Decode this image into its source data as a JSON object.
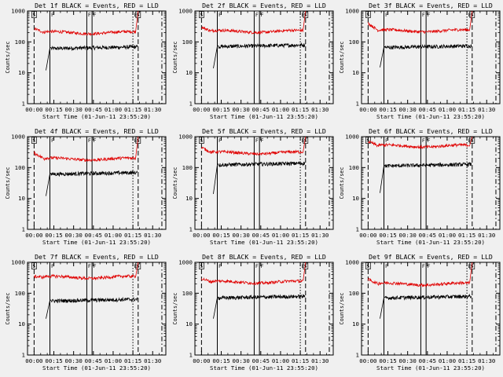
{
  "figure": {
    "background": "#f0f0f0",
    "events_color": "#000000",
    "lld_color": "#e00000"
  },
  "chart_data": [
    {
      "type": "line",
      "title": "Det 1f BLACK = Events, RED = LLD",
      "xlabel": "Start Time (01-Jun-11 23:55:20)",
      "ylabel": "Counts/sec",
      "x_ticks": [
        "00:00",
        "00:15",
        "00:30",
        "00:45",
        "01:00",
        "01:15",
        "01:30"
      ],
      "y_ticks": [
        "1",
        "10",
        "100",
        "1000"
      ],
      "xlim_minutes": [
        -5,
        100
      ],
      "ylim": [
        1,
        1000
      ],
      "yscale": "log",
      "markers": [
        {
          "label": "S",
          "minutes": 0.0,
          "style": "dashed"
        },
        {
          "label": "F",
          "minutes": 12.0,
          "style": "solid"
        },
        {
          "label": "F",
          "minutes": 40.0,
          "style": "solid"
        },
        {
          "label": "F",
          "minutes": 44.0,
          "style": "solid"
        },
        {
          "label": "E",
          "minutes": 75.0,
          "style": "dotted"
        },
        {
          "label": "S",
          "minutes": 79.0,
          "style": "dashed"
        },
        {
          "label": "",
          "minutes": 97.0,
          "style": "dashdot"
        }
      ],
      "series": [
        {
          "name": "Events",
          "color": "#000000",
          "start_minutes": 9,
          "end_minutes": 78.5,
          "start_value": 12,
          "level": 65,
          "end_value": 75
        },
        {
          "name": "LLD",
          "color": "#e00000",
          "start_minutes": 0,
          "end_minutes": 79,
          "start_value": 270,
          "level": 200,
          "end_value": 1000
        }
      ]
    },
    {
      "type": "line",
      "title": "Det 2f BLACK = Events, RED = LLD",
      "xlabel": "Start Time (01-Jun-11 23:55:20)",
      "ylabel": "Counts/sec",
      "x_ticks": [
        "00:00",
        "00:15",
        "00:30",
        "00:45",
        "01:00",
        "01:15",
        "01:30"
      ],
      "y_ticks": [
        "1",
        "10",
        "100",
        "1000"
      ],
      "xlim_minutes": [
        -5,
        100
      ],
      "ylim": [
        1,
        1000
      ],
      "yscale": "log",
      "markers": [
        {
          "label": "S",
          "minutes": 0.0,
          "style": "dashed"
        },
        {
          "label": "F",
          "minutes": 12.0,
          "style": "solid"
        },
        {
          "label": "F",
          "minutes": 40.0,
          "style": "solid"
        },
        {
          "label": "F",
          "minutes": 44.0,
          "style": "solid"
        },
        {
          "label": "E",
          "minutes": 75.0,
          "style": "dotted"
        },
        {
          "label": "S",
          "minutes": 79.0,
          "style": "dashed"
        },
        {
          "label": "",
          "minutes": 97.0,
          "style": "dashdot"
        }
      ],
      "series": [
        {
          "name": "Events",
          "color": "#000000",
          "start_minutes": 9,
          "end_minutes": 78.5,
          "start_value": 14,
          "level": 75,
          "end_value": 85
        },
        {
          "name": "LLD",
          "color": "#e00000",
          "start_minutes": 0,
          "end_minutes": 79,
          "start_value": 300,
          "level": 220,
          "end_value": 1000
        }
      ]
    },
    {
      "type": "line",
      "title": "Det 3f BLACK = Events, RED = LLD",
      "xlabel": "Start Time (01-Jun-11 23:55:20)",
      "ylabel": "Counts/sec",
      "x_ticks": [
        "00:00",
        "00:15",
        "00:30",
        "00:45",
        "01:00",
        "01:15",
        "01:30"
      ],
      "y_ticks": [
        "1",
        "10",
        "100",
        "1000"
      ],
      "xlim_minutes": [
        -5,
        100
      ],
      "ylim": [
        1,
        1000
      ],
      "yscale": "log",
      "markers": [
        {
          "label": "S",
          "minutes": 0.0,
          "style": "dashed"
        },
        {
          "label": "F",
          "minutes": 12.0,
          "style": "solid"
        },
        {
          "label": "F",
          "minutes": 40.0,
          "style": "solid"
        },
        {
          "label": "F",
          "minutes": 44.0,
          "style": "solid"
        },
        {
          "label": "E",
          "minutes": 75.0,
          "style": "dotted"
        },
        {
          "label": "S",
          "minutes": 79.0,
          "style": "dashed"
        },
        {
          "label": "",
          "minutes": 97.0,
          "style": "dashdot"
        }
      ],
      "series": [
        {
          "name": "Events",
          "color": "#000000",
          "start_minutes": 9,
          "end_minutes": 78.5,
          "start_value": 15,
          "level": 70,
          "end_value": 80
        },
        {
          "name": "LLD",
          "color": "#e00000",
          "start_minutes": 0,
          "end_minutes": 79,
          "start_value": 400,
          "level": 230,
          "end_value": 1000
        }
      ]
    },
    {
      "type": "line",
      "title": "Det 4f BLACK = Events, RED = LLD",
      "xlabel": "Start Time (01-Jun-11 23:55:20)",
      "ylabel": "Counts/sec",
      "x_ticks": [
        "00:00",
        "00:15",
        "00:30",
        "00:45",
        "01:00",
        "01:15",
        "01:30"
      ],
      "y_ticks": [
        "1",
        "10",
        "100",
        "1000"
      ],
      "xlim_minutes": [
        -5,
        100
      ],
      "ylim": [
        1,
        1000
      ],
      "yscale": "log",
      "markers": [
        {
          "label": "S",
          "minutes": 0.0,
          "style": "dashed"
        },
        {
          "label": "F",
          "minutes": 12.0,
          "style": "solid"
        },
        {
          "label": "F",
          "minutes": 40.0,
          "style": "solid"
        },
        {
          "label": "F",
          "minutes": 44.0,
          "style": "solid"
        },
        {
          "label": "E",
          "minutes": 75.0,
          "style": "dotted"
        },
        {
          "label": "S",
          "minutes": 79.0,
          "style": "dashed"
        },
        {
          "label": "",
          "minutes": 97.0,
          "style": "dashdot"
        }
      ],
      "series": [
        {
          "name": "Events",
          "color": "#000000",
          "start_minutes": 9,
          "end_minutes": 78.5,
          "start_value": 12,
          "level": 65,
          "end_value": 75
        },
        {
          "name": "LLD",
          "color": "#e00000",
          "start_minutes": 0,
          "end_minutes": 79,
          "start_value": 300,
          "level": 190,
          "end_value": 1000
        }
      ]
    },
    {
      "type": "line",
      "title": "Det 5f BLACK = Events, RED = LLD",
      "xlabel": "Start Time (01-Jun-11 23:55:20)",
      "ylabel": "Counts/sec",
      "x_ticks": [
        "00:00",
        "00:15",
        "00:30",
        "00:45",
        "01:00",
        "01:15",
        "01:30"
      ],
      "y_ticks": [
        "1",
        "10",
        "100",
        "1000"
      ],
      "xlim_minutes": [
        -5,
        100
      ],
      "ylim": [
        1,
        1000
      ],
      "yscale": "log",
      "markers": [
        {
          "label": "S",
          "minutes": 0.0,
          "style": "dashed"
        },
        {
          "label": "F",
          "minutes": 12.0,
          "style": "solid"
        },
        {
          "label": "F",
          "minutes": 40.0,
          "style": "solid"
        },
        {
          "label": "F",
          "minutes": 44.0,
          "style": "solid"
        },
        {
          "label": "E",
          "minutes": 75.0,
          "style": "dotted"
        },
        {
          "label": "S",
          "minutes": 79.0,
          "style": "dashed"
        },
        {
          "label": "",
          "minutes": 97.0,
          "style": "dashdot"
        }
      ],
      "series": [
        {
          "name": "Events",
          "color": "#000000",
          "start_minutes": 9,
          "end_minutes": 78.5,
          "start_value": 14,
          "level": 130,
          "end_value": 120
        },
        {
          "name": "LLD",
          "color": "#e00000",
          "start_minutes": 0,
          "end_minutes": 79,
          "start_value": 450,
          "level": 300,
          "end_value": 1000
        }
      ]
    },
    {
      "type": "line",
      "title": "Det 6f BLACK = Events, RED = LLD",
      "xlabel": "Start Time (01-Jun-11 23:55:20)",
      "ylabel": "Counts/sec",
      "x_ticks": [
        "00:00",
        "00:15",
        "00:30",
        "00:45",
        "01:00",
        "01:15",
        "01:30"
      ],
      "y_ticks": [
        "1",
        "10",
        "100",
        "1000"
      ],
      "xlim_minutes": [
        -5,
        100
      ],
      "ylim": [
        1,
        1000
      ],
      "yscale": "log",
      "markers": [
        {
          "label": "S",
          "minutes": 0.0,
          "style": "dashed"
        },
        {
          "label": "F",
          "minutes": 12.0,
          "style": "solid"
        },
        {
          "label": "F",
          "minutes": 40.0,
          "style": "solid"
        },
        {
          "label": "F",
          "minutes": 44.0,
          "style": "solid"
        },
        {
          "label": "E",
          "minutes": 75.0,
          "style": "dotted"
        },
        {
          "label": "S",
          "minutes": 79.0,
          "style": "dashed"
        },
        {
          "label": "",
          "minutes": 97.0,
          "style": "dashdot"
        }
      ],
      "series": [
        {
          "name": "Events",
          "color": "#000000",
          "start_minutes": 9,
          "end_minutes": 78.5,
          "start_value": 15,
          "level": 120,
          "end_value": 100
        },
        {
          "name": "LLD",
          "color": "#e00000",
          "start_minutes": 0,
          "end_minutes": 79,
          "start_value": 700,
          "level": 500,
          "end_value": 1000
        }
      ]
    },
    {
      "type": "line",
      "title": "Det 7f BLACK = Events, RED = LLD",
      "xlabel": "Start Time (01-Jun-11 23:55:20)",
      "ylabel": "Counts/sec",
      "x_ticks": [
        "00:00",
        "00:15",
        "00:30",
        "00:45",
        "01:00",
        "01:15",
        "01:30"
      ],
      "y_ticks": [
        "1",
        "10",
        "100",
        "1000"
      ],
      "xlim_minutes": [
        -5,
        100
      ],
      "ylim": [
        1,
        1000
      ],
      "yscale": "log",
      "markers": [
        {
          "label": "S",
          "minutes": 0.0,
          "style": "dashed"
        },
        {
          "label": "F",
          "minutes": 12.0,
          "style": "solid"
        },
        {
          "label": "F",
          "minutes": 40.0,
          "style": "solid"
        },
        {
          "label": "F",
          "minutes": 44.0,
          "style": "solid"
        },
        {
          "label": "E",
          "minutes": 75.0,
          "style": "dotted"
        },
        {
          "label": "S",
          "minutes": 79.0,
          "style": "dashed"
        },
        {
          "label": "",
          "minutes": 97.0,
          "style": "dashdot"
        }
      ],
      "series": [
        {
          "name": "Events",
          "color": "#000000",
          "start_minutes": 9,
          "end_minutes": 78.5,
          "start_value": 15,
          "level": 60,
          "end_value": 60
        },
        {
          "name": "LLD",
          "color": "#e00000",
          "start_minutes": 0,
          "end_minutes": 79,
          "start_value": 350,
          "level": 330,
          "end_value": 1000
        }
      ]
    },
    {
      "type": "line",
      "title": "Det 8f BLACK = Events, RED = LLD",
      "xlabel": "Start Time (01-Jun-11 23:55:20)",
      "ylabel": "Counts/sec",
      "x_ticks": [
        "00:00",
        "00:15",
        "00:30",
        "00:45",
        "01:00",
        "01:15",
        "01:30"
      ],
      "y_ticks": [
        "1",
        "10",
        "100",
        "1000"
      ],
      "xlim_minutes": [
        -5,
        100
      ],
      "ylim": [
        1,
        1000
      ],
      "yscale": "log",
      "markers": [
        {
          "label": "S",
          "minutes": 0.0,
          "style": "dashed"
        },
        {
          "label": "F",
          "minutes": 12.0,
          "style": "solid"
        },
        {
          "label": "F",
          "minutes": 40.0,
          "style": "solid"
        },
        {
          "label": "F",
          "minutes": 44.0,
          "style": "solid"
        },
        {
          "label": "E",
          "minutes": 75.0,
          "style": "dotted"
        },
        {
          "label": "S",
          "minutes": 79.0,
          "style": "dashed"
        },
        {
          "label": "",
          "minutes": 97.0,
          "style": "dashdot"
        }
      ],
      "series": [
        {
          "name": "Events",
          "color": "#000000",
          "start_minutes": 9,
          "end_minutes": 78.5,
          "start_value": 15,
          "level": 75,
          "end_value": 85
        },
        {
          "name": "LLD",
          "color": "#e00000",
          "start_minutes": 0,
          "end_minutes": 79,
          "start_value": 300,
          "level": 230,
          "end_value": 1000
        }
      ]
    },
    {
      "type": "line",
      "title": "Det 9f BLACK = Events, RED = LLD",
      "xlabel": "Start Time (01-Jun-11 23:55:20)",
      "ylabel": "Counts/sec",
      "x_ticks": [
        "00:00",
        "00:15",
        "00:30",
        "00:45",
        "01:00",
        "01:15",
        "01:30"
      ],
      "y_ticks": [
        "1",
        "10",
        "100",
        "1000"
      ],
      "xlim_minutes": [
        -5,
        100
      ],
      "ylim": [
        1,
        1000
      ],
      "yscale": "log",
      "markers": [
        {
          "label": "S",
          "minutes": 0.0,
          "style": "dashed"
        },
        {
          "label": "F",
          "minutes": 12.0,
          "style": "solid"
        },
        {
          "label": "F",
          "minutes": 40.0,
          "style": "solid"
        },
        {
          "label": "F",
          "minutes": 44.0,
          "style": "solid"
        },
        {
          "label": "E",
          "minutes": 75.0,
          "style": "dotted"
        },
        {
          "label": "S",
          "minutes": 79.0,
          "style": "dashed"
        },
        {
          "label": "",
          "minutes": 97.0,
          "style": "dashdot"
        }
      ],
      "series": [
        {
          "name": "Events",
          "color": "#000000",
          "start_minutes": 9,
          "end_minutes": 78.5,
          "start_value": 15,
          "level": 75,
          "end_value": 70
        },
        {
          "name": "LLD",
          "color": "#e00000",
          "start_minutes": 0,
          "end_minutes": 79,
          "start_value": 280,
          "level": 200,
          "end_value": 1000
        }
      ]
    }
  ]
}
